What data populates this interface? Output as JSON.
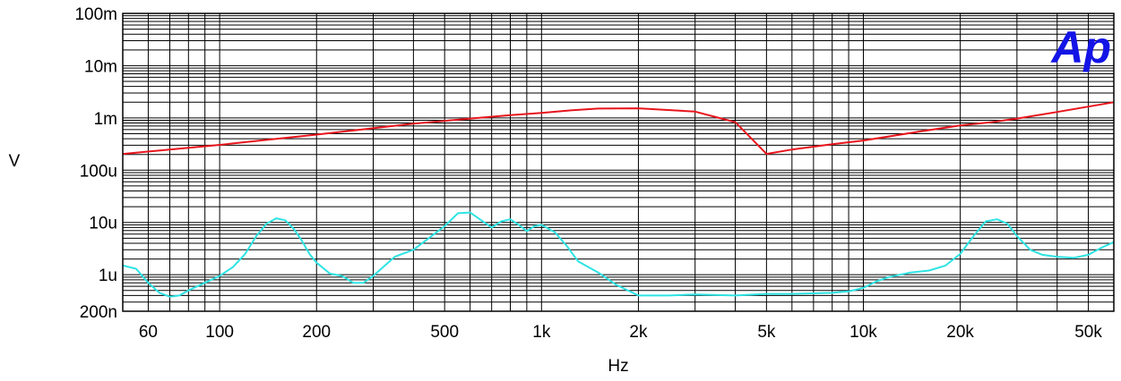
{
  "chart_data": {
    "type": "line",
    "title": "",
    "xlabel": "Hz",
    "ylabel": "V",
    "x_scale": "log",
    "y_scale": "log",
    "xlim": [
      50,
      60000
    ],
    "ylim": [
      2e-07,
      0.1
    ],
    "grid": true,
    "x_tick_labels": [
      {
        "value": 60,
        "label": "60"
      },
      {
        "value": 100,
        "label": "100"
      },
      {
        "value": 200,
        "label": "200"
      },
      {
        "value": 500,
        "label": "500"
      },
      {
        "value": 1000,
        "label": "1k"
      },
      {
        "value": 2000,
        "label": "2k"
      },
      {
        "value": 5000,
        "label": "5k"
      },
      {
        "value": 10000,
        "label": "10k"
      },
      {
        "value": 20000,
        "label": "20k"
      },
      {
        "value": 50000,
        "label": "50k"
      }
    ],
    "y_tick_labels": [
      {
        "value": 0.1,
        "label": "100m"
      },
      {
        "value": 0.01,
        "label": "10m"
      },
      {
        "value": 0.001,
        "label": "1m"
      },
      {
        "value": 0.0001,
        "label": "100u"
      },
      {
        "value": 1e-05,
        "label": "10u"
      },
      {
        "value": 1e-06,
        "label": "1u"
      },
      {
        "value": 2e-07,
        "label": "200n"
      }
    ],
    "series": [
      {
        "color": "#e8141c",
        "x": [
          50,
          100,
          200,
          400,
          600,
          800,
          1000,
          1200,
          1500,
          2000,
          3000,
          4000,
          5000,
          6000,
          8000,
          10000,
          15000,
          20000,
          25000,
          30000,
          40000,
          50000,
          60000
        ],
        "y": [
          0.000205,
          0.000305,
          0.00048,
          0.00078,
          0.00097,
          0.00113,
          0.00125,
          0.00138,
          0.00151,
          0.00153,
          0.00132,
          0.00083,
          0.000205,
          0.000248,
          0.000315,
          0.00037,
          0.00055,
          0.00072,
          0.00083,
          0.00097,
          0.0013,
          0.00165,
          0.002
        ]
      },
      {
        "color": "#2ee3e3",
        "x": [
          50,
          55,
          60,
          65,
          70,
          75,
          80,
          90,
          100,
          110,
          120,
          130,
          140,
          150,
          160,
          170,
          180,
          190,
          200,
          220,
          240,
          260,
          280,
          300,
          350,
          400,
          450,
          500,
          550,
          600,
          650,
          700,
          750,
          800,
          850,
          900,
          950,
          1000,
          1100,
          1200,
          1300,
          1500,
          1700,
          2000,
          2500,
          3000,
          4000,
          5000,
          6000,
          7000,
          8000,
          9000,
          10000,
          11000,
          12000,
          14000,
          16000,
          18000,
          20000,
          22000,
          24000,
          26000,
          28000,
          30000,
          33000,
          36000,
          40000,
          45000,
          50000,
          55000,
          60000
        ],
        "y": [
          1.5e-06,
          1.3e-06,
          7e-07,
          4.5e-07,
          3.8e-07,
          4e-07,
          5e-07,
          7e-07,
          9.5e-07,
          1.4e-06,
          2.5e-06,
          5.5e-06,
          9.5e-06,
          1.2e-05,
          1.1e-05,
          7.5e-06,
          4.5e-06,
          2.5e-06,
          1.7e-06,
          1.05e-06,
          9.5e-07,
          7e-07,
          7e-07,
          9.5e-07,
          2.2e-06,
          3e-06,
          5.2e-06,
          8.5e-06,
          1.5e-05,
          1.55e-05,
          1.1e-05,
          8e-06,
          1.05e-05,
          1.15e-05,
          9e-06,
          6.8e-06,
          8.5e-06,
          9e-06,
          6.5e-06,
          3.5e-06,
          1.8e-06,
          1.1e-06,
          6.5e-07,
          4e-07,
          4e-07,
          4.2e-07,
          4e-07,
          4.3e-07,
          4.3e-07,
          4.4e-07,
          4.5e-07,
          4.8e-07,
          5.6e-07,
          7.5e-07,
          9e-07,
          1.1e-06,
          1.2e-06,
          1.5e-06,
          2.5e-06,
          5.5e-06,
          1.05e-05,
          1.15e-05,
          9.5e-06,
          5.5e-06,
          3e-06,
          2.4e-06,
          2.2e-06,
          2.1e-06,
          2.4e-06,
          3.3e-06,
          4.2e-06
        ]
      }
    ]
  },
  "logo": {
    "text": "Ap",
    "color": "#1414e6"
  }
}
